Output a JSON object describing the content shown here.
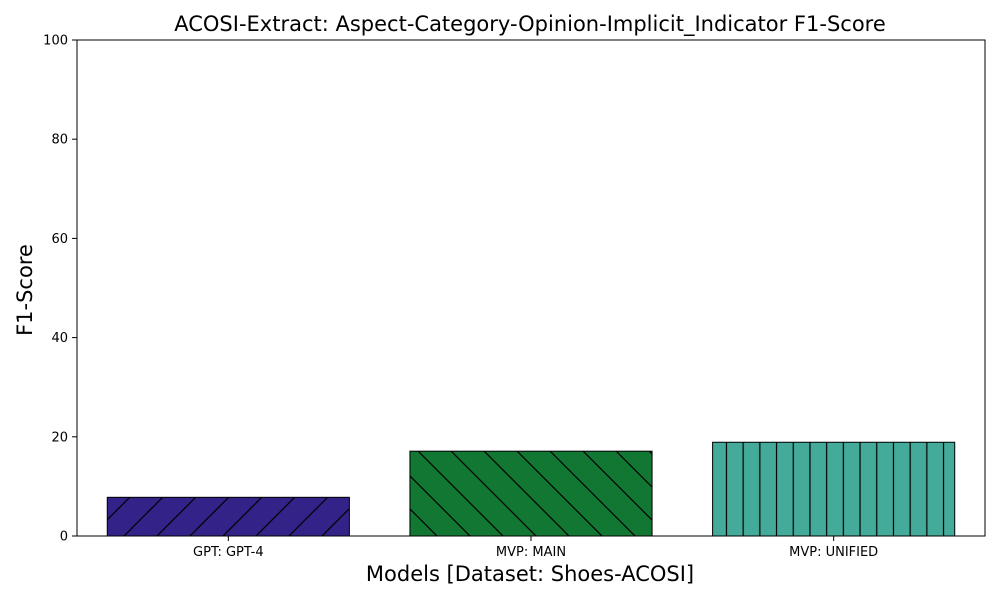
{
  "chart_data": {
    "type": "bar",
    "title": "ACOSI-Extract: Aspect-Category-Opinion-Implicit_Indicator F1-Score",
    "xlabel": "Models [Dataset: Shoes-ACOSI]",
    "ylabel": "F1-Score",
    "categories": [
      "GPT: GPT-4",
      "MVP: MAIN",
      "MVP: UNIFIED"
    ],
    "values": [
      7.8,
      17.1,
      18.9
    ],
    "ylim": [
      0,
      100
    ],
    "yticks": [
      0,
      20,
      40,
      60,
      80,
      100
    ],
    "colors": [
      "#332288",
      "#117733",
      "#44AA99"
    ],
    "hatches": [
      "diagonal-up",
      "diagonal-down",
      "vertical"
    ],
    "grid": false,
    "legend": "none"
  }
}
